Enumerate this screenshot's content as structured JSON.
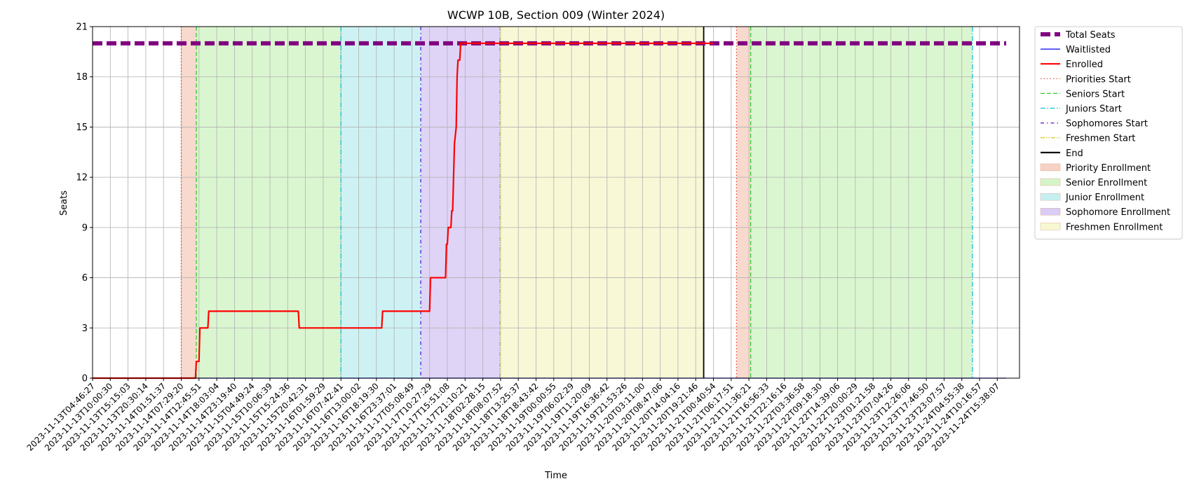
{
  "chart_data": {
    "type": "line",
    "title": "WCWP 10B, Section 009 (Winter 2024)",
    "xlabel": "Time",
    "ylabel": "Seats",
    "ylim": [
      0,
      21
    ],
    "yticks": [
      0,
      3,
      6,
      9,
      12,
      15,
      18,
      21
    ],
    "grid": true,
    "legend_position": "outside-right",
    "x_tick_labels": [
      "2023-11-13T04:46:27",
      "2023-11-13T10:00:30",
      "2023-11-13T15:15:03",
      "2023-11-13T20:30:14",
      "2023-11-14T01:51:37",
      "2023-11-14T07:29:20",
      "2023-11-14T12:45:51",
      "2023-11-14T18:03:04",
      "2023-11-14T23:19:40",
      "2023-11-15T04:49:24",
      "2023-11-15T10:06:39",
      "2023-11-15T15:24:36",
      "2023-11-15T20:42:31",
      "2023-11-16T01:59:29",
      "2023-11-16T07:42:41",
      "2023-11-16T13:00:02",
      "2023-11-16T18:19:30",
      "2023-11-16T23:37:01",
      "2023-11-17T05:08:49",
      "2023-11-17T10:27:29",
      "2023-11-17T15:51:08",
      "2023-11-17T21:10:21",
      "2023-11-18T02:28:15",
      "2023-11-18T08:07:52",
      "2023-11-18T13:25:37",
      "2023-11-18T18:43:42",
      "2023-11-19T00:00:55",
      "2023-11-19T06:02:29",
      "2023-11-19T11:20:09",
      "2023-11-19T16:36:42",
      "2023-11-19T21:53:26",
      "2023-11-20T03:11:00",
      "2023-11-20T08:47:06",
      "2023-11-20T14:04:16",
      "2023-11-20T19:21:46",
      "2023-11-21T00:40:54",
      "2023-11-21T06:17:51",
      "2023-11-21T11:36:21",
      "2023-11-21T16:56:33",
      "2023-11-21T22:16:16",
      "2023-11-22T03:36:58",
      "2023-11-22T09:18:30",
      "2023-11-22T14:39:06",
      "2023-11-22T20:00:29",
      "2023-11-23T01:21:58",
      "2023-11-23T07:04:26",
      "2023-11-23T12:26:06",
      "2023-11-23T17:46:50",
      "2023-11-23T23:07:57",
      "2023-11-24T04:55:38",
      "2023-11-24T10:16:57",
      "2023-11-24T15:38:07"
    ],
    "x_range_ticks": [
      0,
      51.5
    ],
    "series": [
      {
        "name": "Total Seats",
        "color": "#800080",
        "style": "dashed-thick",
        "points": [
          [
            0,
            20
          ],
          [
            51.5,
            20
          ]
        ]
      },
      {
        "name": "Waitlisted",
        "color": "#0000ff",
        "style": "solid-thin",
        "points": [
          [
            0,
            0
          ],
          [
            51.5,
            0
          ]
        ]
      },
      {
        "name": "Enrolled",
        "color": "#ff0000",
        "style": "solid",
        "points": [
          [
            0,
            0
          ],
          [
            5.8,
            0
          ],
          [
            5.85,
            1
          ],
          [
            6.0,
            1
          ],
          [
            6.05,
            3
          ],
          [
            6.5,
            3
          ],
          [
            6.55,
            4
          ],
          [
            11.6,
            4
          ],
          [
            11.65,
            3
          ],
          [
            16.3,
            3
          ],
          [
            16.35,
            4
          ],
          [
            19.0,
            4
          ],
          [
            19.05,
            6
          ],
          [
            19.9,
            6
          ],
          [
            19.95,
            8
          ],
          [
            20.0,
            8
          ],
          [
            20.05,
            9
          ],
          [
            20.2,
            9
          ],
          [
            20.25,
            10
          ],
          [
            20.3,
            10
          ],
          [
            20.4,
            14
          ],
          [
            20.5,
            15
          ],
          [
            20.55,
            18
          ],
          [
            20.6,
            19
          ],
          [
            20.7,
            19
          ],
          [
            20.75,
            20
          ],
          [
            35.0,
            20
          ]
        ]
      }
    ],
    "markers": [
      {
        "name": "Priorities Start",
        "x": 5.0,
        "color": "#e8473a",
        "style": "dotted"
      },
      {
        "name": "Seniors Start",
        "x": 5.85,
        "color": "#33cc33",
        "style": "dashed"
      },
      {
        "name": "Juniors Start",
        "x": 14.0,
        "color": "#17becf",
        "style": "dashdot"
      },
      {
        "name": "Sophomores Start",
        "x": 18.5,
        "color": "#5b18d6",
        "style": "densedashdot"
      },
      {
        "name": "Freshmen Start",
        "x": 22.95,
        "color": "#e0c000",
        "style": "dashdotdot"
      },
      {
        "name": "End",
        "x": 34.45,
        "color": "#000000",
        "style": "solid"
      },
      {
        "name": "Priorities Start",
        "x": 36.3,
        "color": "#e8473a",
        "style": "dotted"
      },
      {
        "name": "Seniors Start",
        "x": 37.1,
        "color": "#33cc33",
        "style": "dashed"
      },
      {
        "name": "Juniors Start",
        "x": 49.6,
        "color": "#17becf",
        "style": "dashdot"
      }
    ],
    "regions": [
      {
        "name": "Priority Enrollment",
        "from": 5.0,
        "to": 5.85,
        "color": "#f7d2c4"
      },
      {
        "name": "Senior Enrollment",
        "from": 5.85,
        "to": 14.0,
        "color": "#d4f5c8"
      },
      {
        "name": "Junior Enrollment",
        "from": 14.0,
        "to": 18.5,
        "color": "#c5f0f2"
      },
      {
        "name": "Sophomore Enrollment",
        "from": 18.5,
        "to": 22.95,
        "color": "#d9cdf5"
      },
      {
        "name": "Freshmen Enrollment",
        "from": 22.95,
        "to": 34.45,
        "color": "#f7f7d0"
      },
      {
        "name": "Priority Enrollment",
        "from": 36.3,
        "to": 37.1,
        "color": "#f7d2c4"
      },
      {
        "name": "Senior Enrollment",
        "from": 37.1,
        "to": 49.6,
        "color": "#d4f5c8"
      }
    ],
    "legend": [
      {
        "label": "Total Seats",
        "kind": "line",
        "color": "#800080",
        "style": "dashed-thick"
      },
      {
        "label": "Waitlisted",
        "kind": "line",
        "color": "#0000ff",
        "style": "solid-thin"
      },
      {
        "label": "Enrolled",
        "kind": "line",
        "color": "#ff0000",
        "style": "solid"
      },
      {
        "label": "Priorities Start",
        "kind": "line",
        "color": "#e8473a",
        "style": "dotted"
      },
      {
        "label": "Seniors Start",
        "kind": "line",
        "color": "#33cc33",
        "style": "dashed"
      },
      {
        "label": "Juniors Start",
        "kind": "line",
        "color": "#17becf",
        "style": "dashdot"
      },
      {
        "label": "Sophomores Start",
        "kind": "line",
        "color": "#5b18d6",
        "style": "densedashdot"
      },
      {
        "label": "Freshmen Start",
        "kind": "line",
        "color": "#e0c000",
        "style": "dashdotdot"
      },
      {
        "label": "End",
        "kind": "line",
        "color": "#000000",
        "style": "solid"
      },
      {
        "label": "Priority Enrollment",
        "kind": "patch",
        "color": "#f7d2c4"
      },
      {
        "label": "Senior Enrollment",
        "kind": "patch",
        "color": "#d4f5c8"
      },
      {
        "label": "Junior Enrollment",
        "kind": "patch",
        "color": "#c5f0f2"
      },
      {
        "label": "Sophomore Enrollment",
        "kind": "patch",
        "color": "#d9cdf5"
      },
      {
        "label": "Freshmen Enrollment",
        "kind": "patch",
        "color": "#f7f7d0"
      }
    ]
  }
}
